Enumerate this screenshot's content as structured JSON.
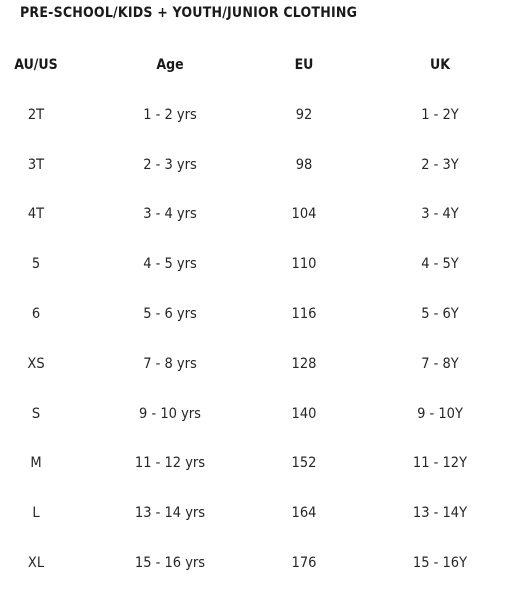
{
  "title": "PRE-SCHOOL/KIDS + YOUTH/JUNIOR CLOTHING",
  "columns": [
    "AU/US",
    "Age",
    "EU",
    "UK"
  ],
  "rows": [
    [
      "2T",
      "1 - 2 yrs",
      "92",
      "1 - 2Y"
    ],
    [
      "3T",
      "2 - 3 yrs",
      "98",
      "2 - 3Y"
    ],
    [
      "4T",
      "3 - 4 yrs",
      "104",
      "3 - 4Y"
    ],
    [
      "5",
      "4 - 5 yrs",
      "110",
      "4 - 5Y"
    ],
    [
      "6",
      "5 - 6 yrs",
      "116",
      "5 - 6Y"
    ],
    [
      "XS",
      "7 - 8 yrs",
      "128",
      "7 - 8Y"
    ],
    [
      "S",
      "9 - 10 yrs",
      "140",
      "9 - 10Y"
    ],
    [
      "M",
      "11 - 12 yrs",
      "152",
      "11 - 12Y"
    ],
    [
      "L",
      "13 - 14 yrs",
      "164",
      "13 - 14Y"
    ],
    [
      "XL",
      "15 - 16 yrs",
      "176",
      "15 - 16Y"
    ]
  ]
}
